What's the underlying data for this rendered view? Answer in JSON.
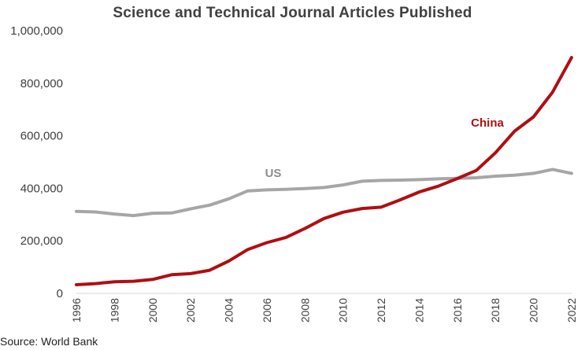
{
  "chart_data": {
    "type": "line",
    "title": "Science and Technical Journal Articles Published",
    "source": "Source: World Bank",
    "xlabel": "",
    "ylabel": "",
    "x": [
      1996,
      1997,
      1998,
      1999,
      2000,
      2001,
      2002,
      2003,
      2004,
      2005,
      2006,
      2007,
      2008,
      2009,
      2010,
      2011,
      2012,
      2013,
      2014,
      2015,
      2016,
      2017,
      2018,
      2019,
      2020,
      2021,
      2022
    ],
    "xlim": [
      1996,
      2022
    ],
    "ylim": [
      0,
      1000000
    ],
    "x_ticks": [
      "1996",
      "1998",
      "2000",
      "2002",
      "2004",
      "2006",
      "2008",
      "2010",
      "2012",
      "2014",
      "2016",
      "2018",
      "2020",
      "2022"
    ],
    "y_ticks": [
      "0",
      "200,000",
      "400,000",
      "600,000",
      "800,000",
      "1,000,000"
    ],
    "y_tick_values": [
      0,
      200000,
      400000,
      600000,
      800000,
      1000000
    ],
    "grid": false,
    "series": [
      {
        "name": "US",
        "color": "#a6a6a6",
        "values": [
          312000,
          310000,
          302000,
          296000,
          305000,
          306000,
          322000,
          336000,
          360000,
          390000,
          394000,
          396000,
          399000,
          403000,
          413000,
          427000,
          430000,
          431000,
          433000,
          436000,
          438000,
          440000,
          446000,
          450000,
          457000,
          472000,
          457000
        ]
      },
      {
        "name": "China",
        "color": "#b00e12",
        "values": [
          33000,
          37000,
          44000,
          46000,
          53000,
          71000,
          75000,
          88000,
          123000,
          167000,
          193000,
          213000,
          247000,
          285000,
          309000,
          323000,
          328000,
          356000,
          386000,
          408000,
          437000,
          468000,
          535000,
          617000,
          672000,
          766000,
          898000
        ]
      }
    ]
  }
}
